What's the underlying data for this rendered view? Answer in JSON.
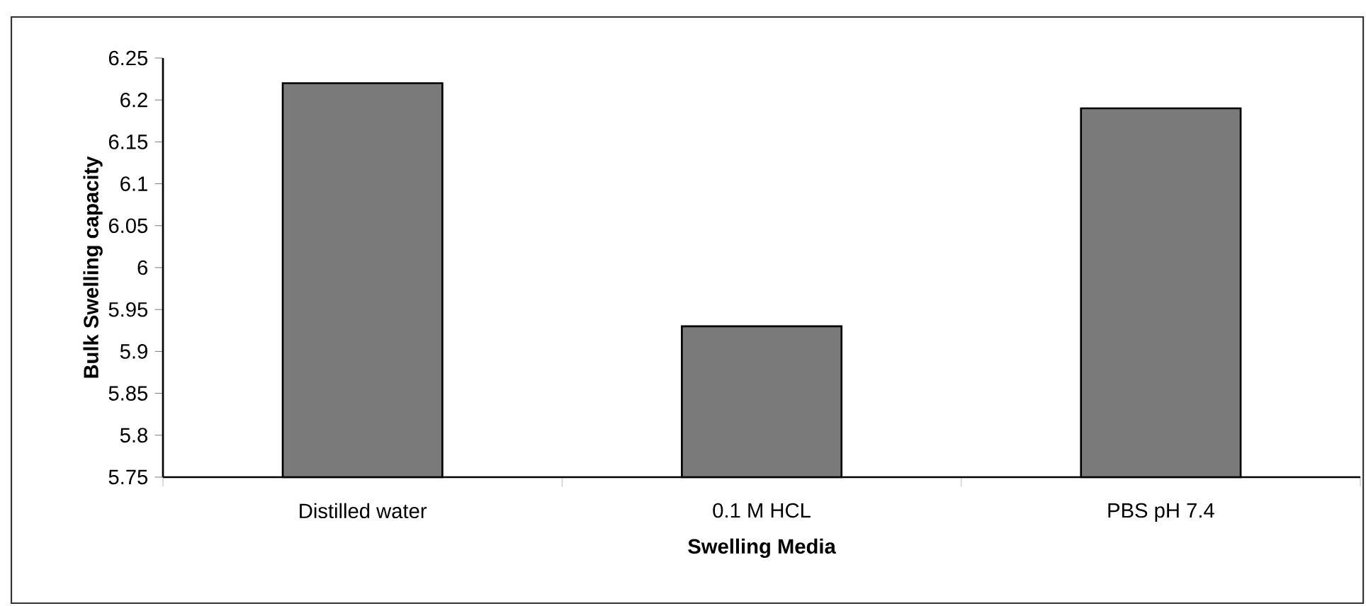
{
  "chart_data": {
    "type": "bar",
    "xlabel": "Swelling Media",
    "ylabel": "Bulk Swelling  capacity",
    "categories": [
      "Distilled water",
      "0.1 M HCL",
      "PBS pH 7.4"
    ],
    "values": [
      6.22,
      5.93,
      6.19
    ],
    "color": "#7a7a7a",
    "ylim": [
      5.75,
      6.25
    ],
    "yticks": [
      5.75,
      5.8,
      5.85,
      5.9,
      5.95,
      6,
      6.05,
      6.1,
      6.15,
      6.2,
      6.25
    ]
  }
}
